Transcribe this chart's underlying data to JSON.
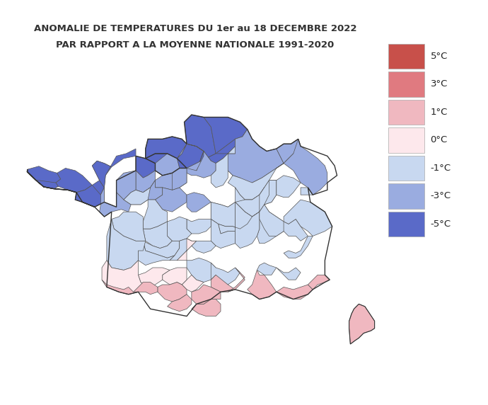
{
  "title_line1": "ANOMALIE DE TEMPERATURES DU 1er au 18 DECEMBRE 2022",
  "title_line2": "PAR RAPPORT A LA MOYENNE NATIONALE 1991-2020",
  "title_fontsize": 9.5,
  "title_color": "#333333",
  "legend_labels": [
    "5°C",
    "3°C",
    "1°C",
    "0°C",
    "-1°C",
    "-3°C",
    "-5°C"
  ],
  "legend_colors": [
    "#c8504a",
    "#e07a80",
    "#f0b8c0",
    "#fde8ec",
    "#c8d8f0",
    "#9aace0",
    "#5a6ac8"
  ],
  "background_color": "#ffffff",
  "border_color": "#555555",
  "france_outline_color": "#333333",
  "dept_border_color": "#555555",
  "dept_border_lw": 0.5,
  "france_border_lw": 1.0,
  "xmin": -5.5,
  "xmax": 9.8,
  "ymin": 41.2,
  "ymax": 51.5
}
